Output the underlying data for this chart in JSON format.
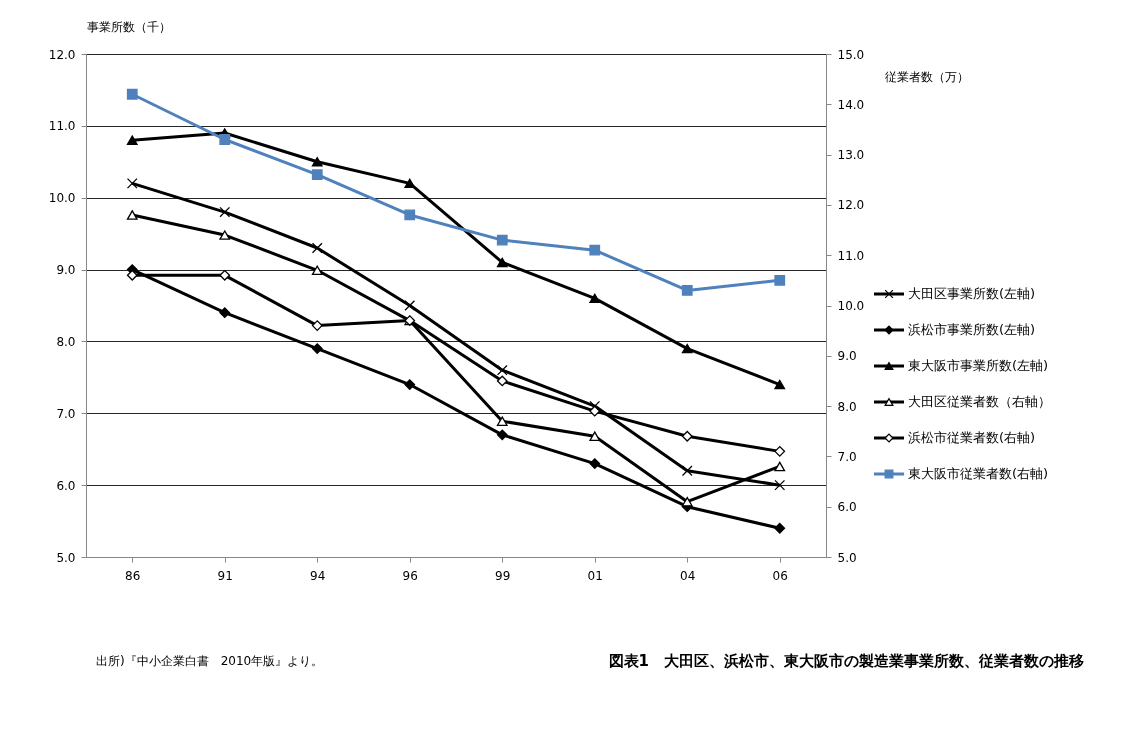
{
  "chart_data": {
    "type": "line",
    "title": "図表1　大田区、浜松市、東大阪市の製造業事業所数、従業者数の推移",
    "ylabel": "事業所数（千）",
    "y2label": "従業者数（万）",
    "annotations": [
      "出所)『中小企業白書　2010年版』より。"
    ],
    "categories": [
      "86",
      "91",
      "94",
      "96",
      "99",
      "01",
      "04",
      "06"
    ],
    "ylim": [
      5,
      12
    ],
    "yticks": [
      {
        "value": 5,
        "label": "5.0"
      },
      {
        "value": 6,
        "label": "6.0"
      },
      {
        "value": 7,
        "label": "7.0"
      },
      {
        "value": 8,
        "label": "8.0"
      },
      {
        "value": 9,
        "label": "9.0"
      },
      {
        "value": 10,
        "label": "10.0"
      },
      {
        "value": 11,
        "label": "11.0"
      },
      {
        "value": 12,
        "label": "12.0"
      }
    ],
    "y2lim": [
      5,
      15
    ],
    "y2ticks": [
      {
        "value": 5,
        "label": "5.0"
      },
      {
        "value": 6,
        "label": "6.0"
      },
      {
        "value": 7,
        "label": "7.0"
      },
      {
        "value": 8,
        "label": "8.0"
      },
      {
        "value": 9,
        "label": "9.0"
      },
      {
        "value": 10,
        "label": "10.0"
      },
      {
        "value": 11,
        "label": "11.0"
      },
      {
        "value": 12,
        "label": "12.0"
      },
      {
        "value": 13,
        "label": "13.0"
      },
      {
        "value": 14,
        "label": "14.0"
      },
      {
        "value": 15,
        "label": "15.0"
      }
    ],
    "grid": "y",
    "legend": "right",
    "line_style": "solid",
    "series": [
      {
        "name": "大田区事業所数(左軸)",
        "color": "#000000",
        "marker": "cross",
        "values": [
          10.2,
          9.8,
          9.3,
          8.5,
          7.6,
          7.1,
          6.2,
          6.0
        ]
      },
      {
        "name": "浜松市事業所数(左軸)",
        "color": "#000000",
        "marker": "diamond",
        "values": [
          9.0,
          8.4,
          7.9,
          7.4,
          6.7,
          6.3,
          5.7,
          5.4
        ]
      },
      {
        "name": "東大阪市事業所数(左軸)",
        "color": "#000000",
        "marker": "triangle",
        "values": [
          10.8,
          10.9,
          10.5,
          10.2,
          9.1,
          8.6,
          7.9,
          7.4
        ]
      },
      {
        "name": "大田区従業者数（右軸）",
        "color": "#000000",
        "marker": "triangle",
        "axis": "y2",
        "values": [
          11.8,
          11.4,
          10.7,
          9.7,
          7.7,
          7.4,
          6.1,
          6.8
        ]
      },
      {
        "name": "浜松市従業者数(右軸)",
        "color": "#000000",
        "marker": "diamond",
        "axis": "y2",
        "values": [
          10.6,
          10.6,
          9.6,
          9.7,
          8.5,
          7.9,
          7.4,
          7.1
        ]
      },
      {
        "name": "東大阪市従業者数(右軸)",
        "color": "#4f81bd",
        "marker": "square",
        "axis": "y2",
        "values": [
          14.2,
          13.3,
          12.6,
          11.8,
          11.3,
          11.1,
          10.3,
          10.5
        ]
      }
    ]
  }
}
